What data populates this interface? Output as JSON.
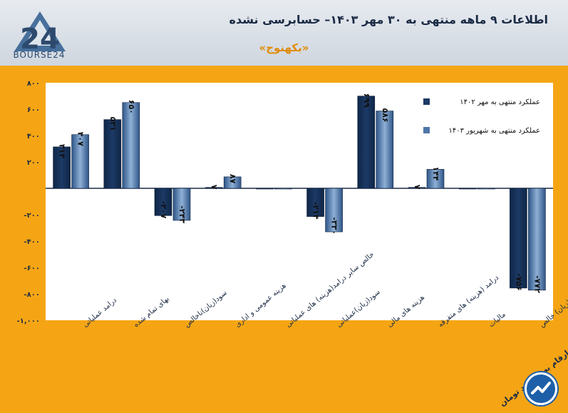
{
  "brand": {
    "logo_text": "BOURSE24",
    "logo_mark": "24"
  },
  "header": {
    "title": "اطلاعات ۹ ماهه منتهی به ۳۰ مهر ۱۴۰۳– حسابرسی نشده",
    "subtitle": "«بکهنوج»"
  },
  "footer": {
    "unit_note": "ارقام به میلیارد تومان"
  },
  "colors": {
    "background": "#f5a514",
    "series1": "#1c3a66",
    "series2": "#4d77a8",
    "plot": "#ffffff",
    "accent": "#e08b00"
  },
  "chart_data": {
    "type": "bar",
    "categories": [
      "درامد عملیاتی",
      "بهای تمام شده",
      "سود(زیان)ناخالص",
      "هزینه عمومی و اداری",
      "خالص سایر درامد(هزینه) های عملیاتی",
      "سود(زیان)عملیاتی",
      "هزینه های مالی",
      "درامد (هزینه) های متفرقه",
      "مالیات",
      "سود(زیان) خالص"
    ],
    "series": [
      {
        "name": "عملکرد منتهی به مهر ۱۴۰۲",
        "values": [
          314,
          521,
          -207,
          7,
          0,
          -214,
          699,
          7,
          0,
          -756
        ],
        "labels": [
          "۳۱۴",
          "۵۲۱",
          "-۲۰۷",
          "۷",
          "",
          "-۲۱۴",
          "۶۹۹",
          "۷",
          "",
          "-۷۵۶"
        ]
      },
      {
        "name": "عملکرد منتهی به شهریور ۱۴۰۳",
        "values": [
          407,
          650,
          -243,
          87,
          0,
          -330,
          586,
          144,
          0,
          -772
        ],
        "labels": [
          "۴۰۷",
          "۶۵۰",
          "-۲۴۳",
          "۸۷",
          "",
          "-۳۳۰",
          "۵۸۶",
          "۱۴۴",
          "",
          "-۷۷۲"
        ]
      }
    ],
    "yticks": [
      800,
      600,
      400,
      200,
      0,
      -200,
      -400,
      -600,
      -800,
      -1000
    ],
    "ytick_labels": [
      "۸۰۰",
      "۶۰۰",
      "۴۰۰",
      "۲۰۰",
      "",
      "-۲۰۰",
      "-۴۰۰",
      "-۶۰۰",
      "-۸۰۰",
      "-۱,۰۰۰"
    ],
    "ylim": [
      -1000,
      800
    ],
    "legend_position": "top-right"
  }
}
